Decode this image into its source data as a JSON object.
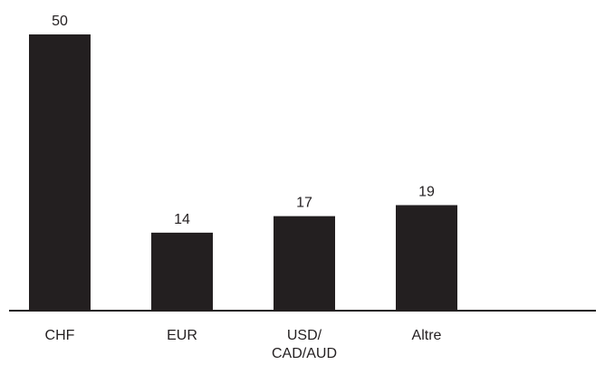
{
  "chart_data": {
    "type": "bar",
    "categories": [
      "CHF",
      "EUR",
      "USD/\nCAD/AUD",
      "Altre"
    ],
    "values": [
      50,
      14,
      17,
      19
    ],
    "data_labels": [
      "50",
      "14",
      "17",
      "19"
    ],
    "ylim": [
      0,
      50
    ],
    "grid": false,
    "bar_color": "#231f20"
  }
}
